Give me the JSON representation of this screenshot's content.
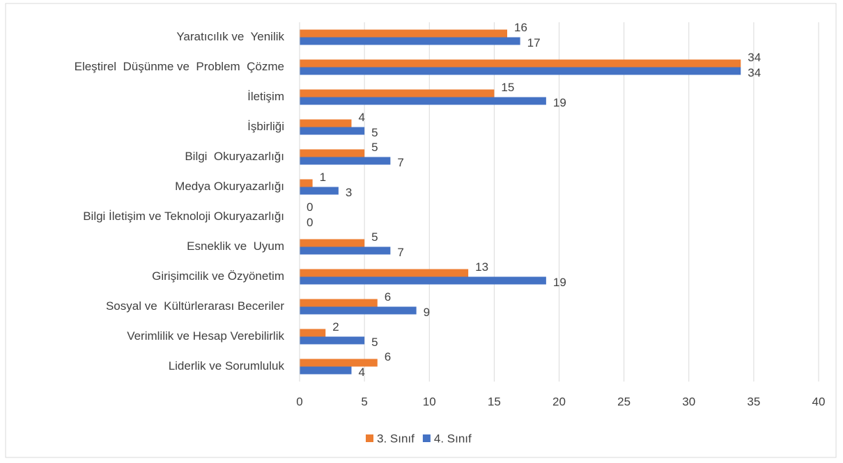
{
  "chart_data": {
    "type": "bar",
    "orientation": "horizontal",
    "categories": [
      "Yaratıcılık ve  Yenilik",
      "Eleştirel  Düşünme ve  Problem  Çözme",
      "İletişim",
      "İşbirliği",
      "Bilgi  Okuryazarlığı",
      "Medya Okuryazarlığı",
      "Bilgi İletişim ve Teknoloji Okuryazarlığı",
      "Esneklik ve  Uyum",
      "Girişimcilik ve Özyönetim",
      "Sosyal ve  Kültürlerarası Beceriler",
      "Verimlilik ve Hesap Verebilirlik",
      "Liderlik ve Sorumluluk"
    ],
    "series": [
      {
        "name": "3. Sınıf",
        "color": "#ed7d31",
        "values": [
          16,
          34,
          15,
          4,
          5,
          1,
          0,
          5,
          13,
          6,
          2,
          6
        ]
      },
      {
        "name": "4. Sınıf",
        "color": "#4472c4",
        "values": [
          17,
          34,
          19,
          5,
          7,
          3,
          0,
          7,
          19,
          9,
          5,
          4
        ]
      }
    ],
    "xlim": [
      0,
      40
    ],
    "xticks": [
      0,
      5,
      10,
      15,
      20,
      25,
      30,
      35,
      40
    ],
    "grid": true,
    "legend": "bottom"
  }
}
